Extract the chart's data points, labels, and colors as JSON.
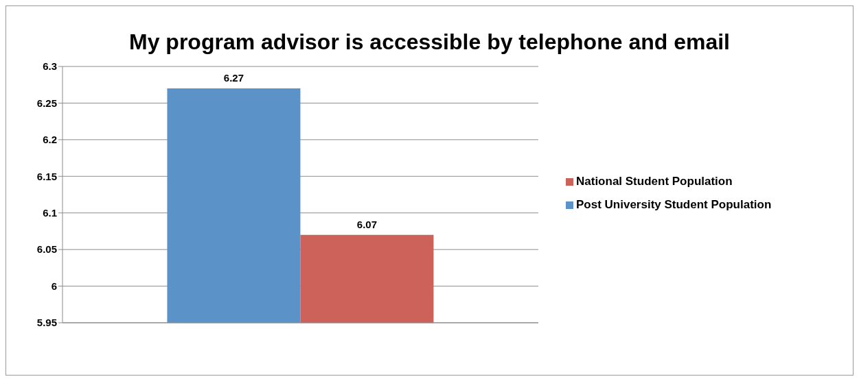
{
  "chart_data": {
    "type": "bar",
    "title": "My program advisor is accessible by telephone and email",
    "categories": [
      null
    ],
    "series": [
      {
        "name": "Post University Student Population",
        "color": "#5b93c8",
        "values": [
          6.27
        ]
      },
      {
        "name": "National Student Population",
        "color": "#cc625a",
        "values": [
          6.07
        ]
      }
    ],
    "ylim": [
      5.95,
      6.3
    ],
    "yticks": [
      5.95,
      6,
      6.05,
      6.1,
      6.15,
      6.2,
      6.25,
      6.3
    ],
    "grid": "y",
    "legend": "right",
    "data_labels": true
  }
}
